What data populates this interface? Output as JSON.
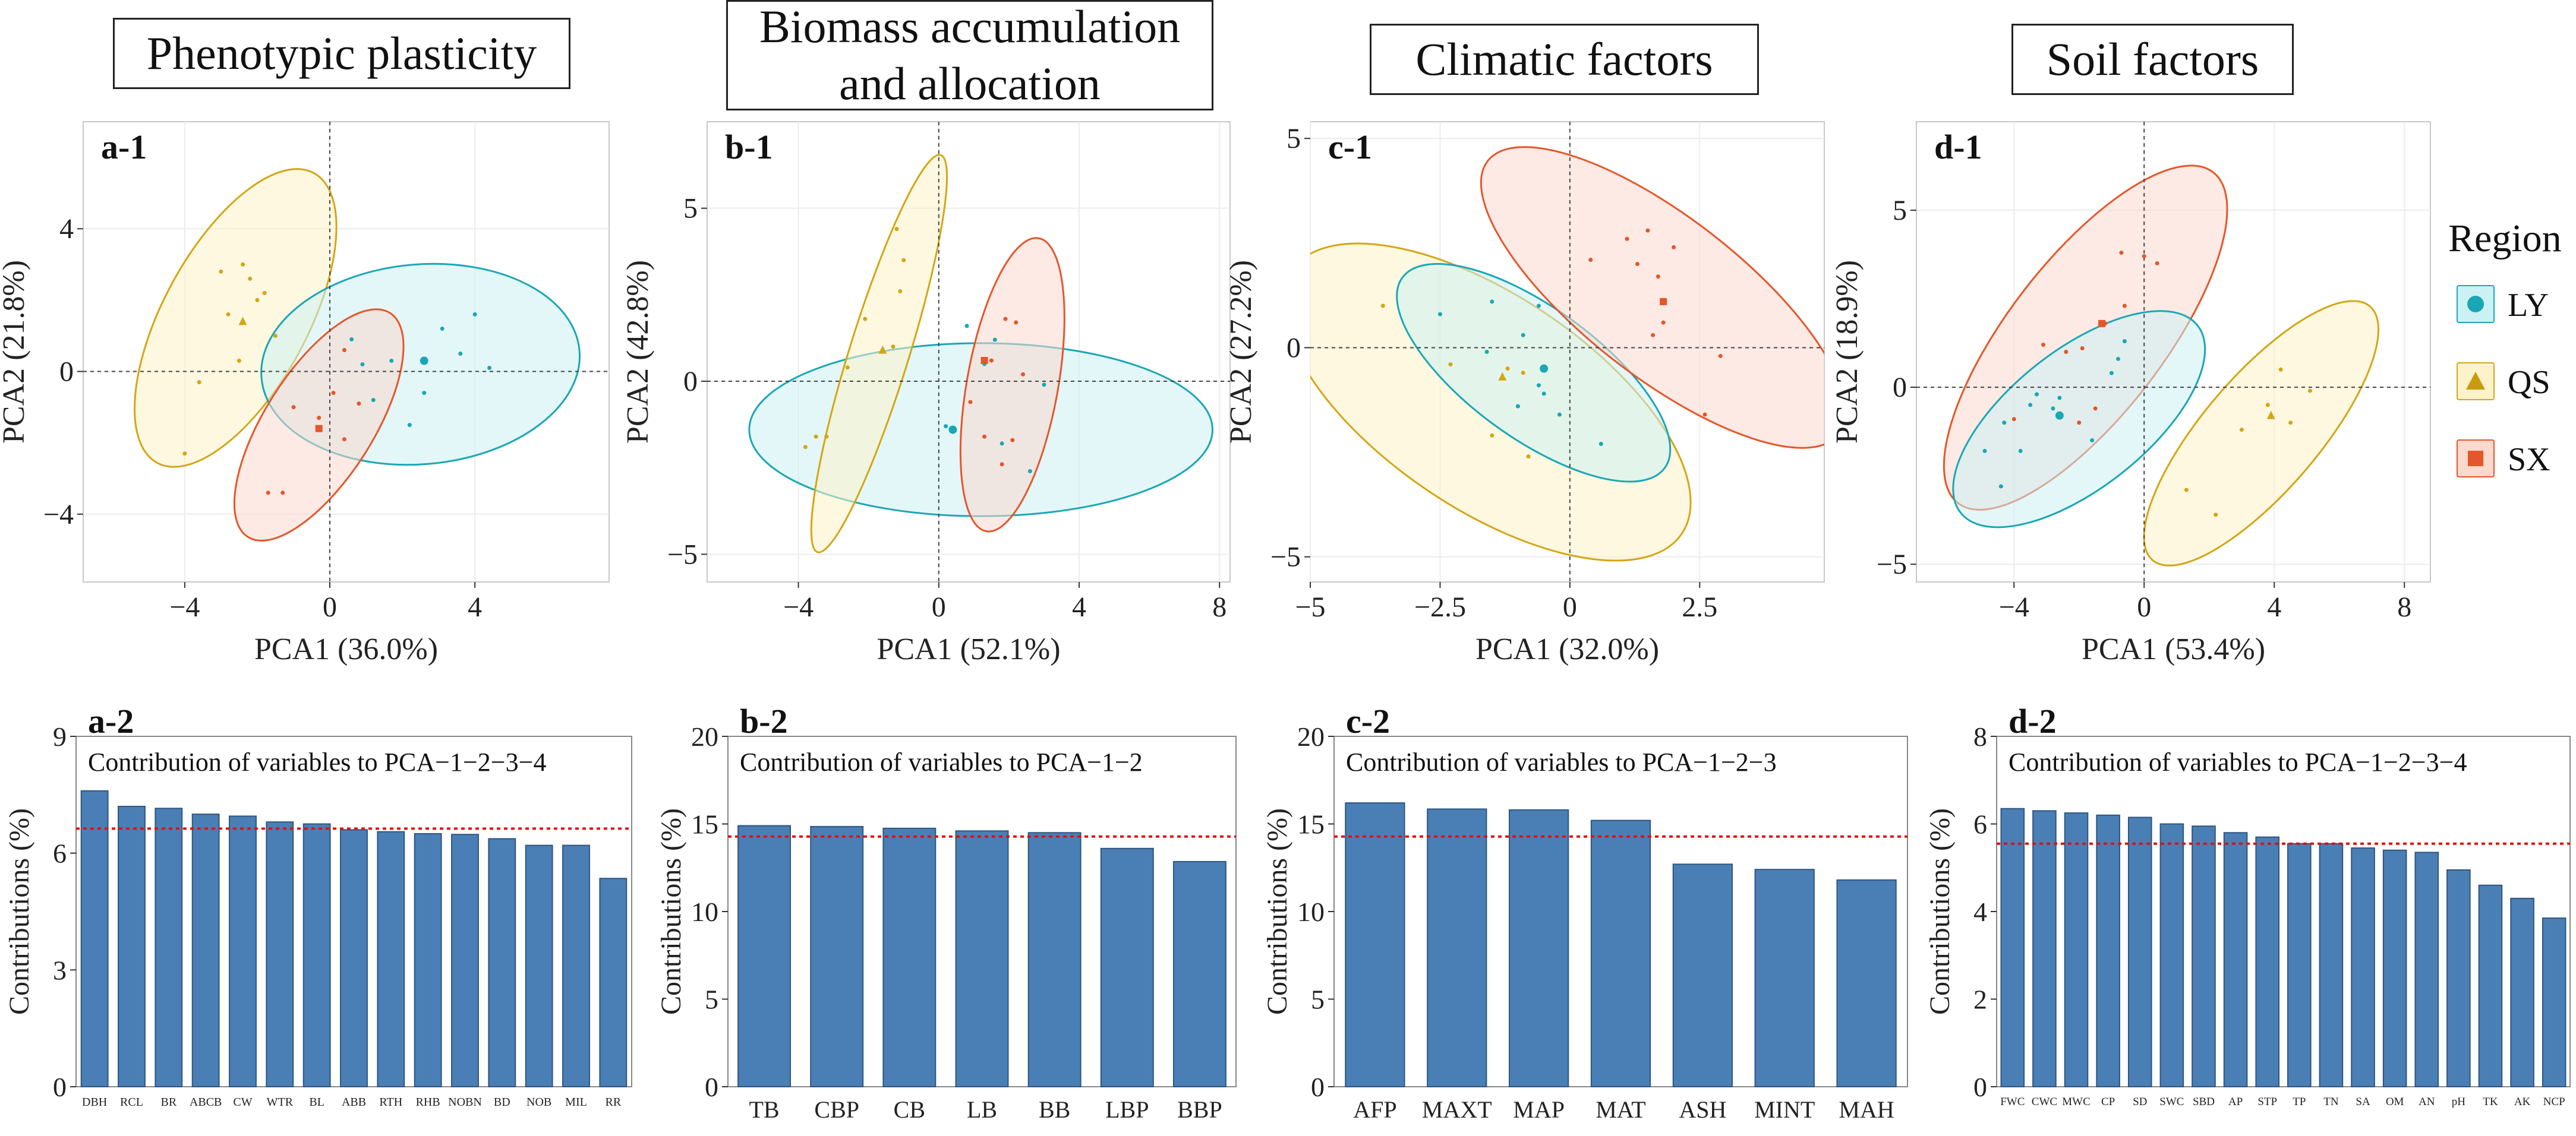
{
  "headers": [
    "Phenotypic plasticity",
    "Biomass accumulation and allocation",
    "Climatic factors",
    "Soil factors"
  ],
  "legend": {
    "title": "Region",
    "items": [
      {
        "name": "LY",
        "color": "#1aa7b5",
        "fill": "#ccf1f4",
        "marker": "circle"
      },
      {
        "name": "QS",
        "color": "#d4a614",
        "fill": "#fdf2c9",
        "marker": "triangle"
      },
      {
        "name": "SX",
        "color": "#e5562a",
        "fill": "#fbd9cd",
        "marker": "square"
      }
    ]
  },
  "chart_data": [
    {
      "panel": "a-1",
      "type": "scatter",
      "xlabel": "PCA1 (36.0%)",
      "ylabel": "PCA2 (21.8%)",
      "xlim": [
        -6.8,
        7.7
      ],
      "ylim": [
        -5.9,
        7.0
      ],
      "xticks": [
        -4,
        0,
        4
      ],
      "yticks": [
        -4,
        0,
        4
      ],
      "ellipses": [
        {
          "group": "QS",
          "cx": -2.6,
          "cy": 1.5,
          "rx": 4.6,
          "ry": 2.0,
          "angle": 62
        },
        {
          "group": "LY",
          "cx": 2.5,
          "cy": 0.2,
          "rx": 4.4,
          "ry": 2.8,
          "angle": 5
        },
        {
          "group": "SX",
          "cx": -0.3,
          "cy": -1.5,
          "rx": 3.7,
          "ry": 1.5,
          "angle": 58
        }
      ],
      "points": [
        {
          "group": "QS",
          "x": -3.0,
          "y": 2.8
        },
        {
          "group": "QS",
          "x": -2.4,
          "y": 3.0
        },
        {
          "group": "QS",
          "x": -1.8,
          "y": 2.2
        },
        {
          "group": "QS",
          "x": -2.2,
          "y": 2.6
        },
        {
          "group": "QS",
          "x": -3.6,
          "y": -0.3
        },
        {
          "group": "QS",
          "x": -4.0,
          "y": -2.3
        },
        {
          "group": "QS",
          "x": -2.8,
          "y": 1.6
        },
        {
          "group": "QS",
          "x": -1.5,
          "y": 1.0
        },
        {
          "group": "QS",
          "x": -2.5,
          "y": 0.3
        },
        {
          "group": "QS",
          "x": -2.0,
          "y": 2.0
        },
        {
          "group": "LY",
          "x": 0.6,
          "y": 0.9
        },
        {
          "group": "LY",
          "x": 0.9,
          "y": 0.2
        },
        {
          "group": "LY",
          "x": 1.7,
          "y": 0.3
        },
        {
          "group": "LY",
          "x": 3.1,
          "y": 1.2
        },
        {
          "group": "LY",
          "x": 3.6,
          "y": 0.5
        },
        {
          "group": "LY",
          "x": 4.0,
          "y": 1.6
        },
        {
          "group": "LY",
          "x": 4.4,
          "y": 0.1
        },
        {
          "group": "LY",
          "x": 2.6,
          "y": -0.6
        },
        {
          "group": "LY",
          "x": 1.2,
          "y": -0.8
        },
        {
          "group": "LY",
          "x": 2.2,
          "y": -1.5
        },
        {
          "group": "SX",
          "x": 0.4,
          "y": 0.6
        },
        {
          "group": "SX",
          "x": 0.1,
          "y": -0.6
        },
        {
          "group": "SX",
          "x": -0.3,
          "y": -1.3
        },
        {
          "group": "SX",
          "x": -1.0,
          "y": -1.0
        },
        {
          "group": "SX",
          "x": -1.3,
          "y": -3.4
        },
        {
          "group": "SX",
          "x": -1.7,
          "y": -3.4
        },
        {
          "group": "SX",
          "x": 0.8,
          "y": -0.9
        },
        {
          "group": "SX",
          "x": 0.4,
          "y": -1.9
        }
      ],
      "centroids": [
        {
          "group": "QS",
          "x": -2.4,
          "y": 1.4
        },
        {
          "group": "LY",
          "x": 2.6,
          "y": 0.3
        },
        {
          "group": "SX",
          "x": -0.3,
          "y": -1.6
        }
      ]
    },
    {
      "panel": "b-1",
      "type": "scatter",
      "xlabel": "PCA1 (52.1%)",
      "ylabel": "PCA2 (42.8%)",
      "xlim": [
        -6.6,
        8.3
      ],
      "ylim": [
        -5.8,
        7.5
      ],
      "xticks": [
        -4,
        0,
        4,
        8
      ],
      "yticks": [
        -5,
        0,
        5
      ],
      "ellipses": [
        {
          "group": "LY",
          "cx": 1.2,
          "cy": -1.4,
          "rx": 6.6,
          "ry": 2.5,
          "angle": 0
        },
        {
          "group": "QS",
          "cx": -1.7,
          "cy": 0.8,
          "rx": 6.0,
          "ry": 0.85,
          "angle": 73
        },
        {
          "group": "SX",
          "cx": 2.1,
          "cy": -0.1,
          "rx": 4.3,
          "ry": 1.3,
          "angle": 80
        }
      ],
      "points": [
        {
          "group": "QS",
          "x": -1.2,
          "y": 4.4
        },
        {
          "group": "QS",
          "x": -1.0,
          "y": 3.5
        },
        {
          "group": "QS",
          "x": -1.1,
          "y": 2.6
        },
        {
          "group": "QS",
          "x": -2.1,
          "y": 1.8
        },
        {
          "group": "QS",
          "x": -2.6,
          "y": 0.4
        },
        {
          "group": "QS",
          "x": -3.5,
          "y": -1.6
        },
        {
          "group": "QS",
          "x": -3.8,
          "y": -1.9
        },
        {
          "group": "QS",
          "x": -3.2,
          "y": -1.6
        },
        {
          "group": "QS",
          "x": -1.3,
          "y": 1.0
        },
        {
          "group": "LY",
          "x": 0.8,
          "y": 1.6
        },
        {
          "group": "LY",
          "x": 1.6,
          "y": 1.2
        },
        {
          "group": "LY",
          "x": 3.0,
          "y": -0.1
        },
        {
          "group": "LY",
          "x": 2.6,
          "y": -2.6
        },
        {
          "group": "LY",
          "x": 0.2,
          "y": -1.3
        },
        {
          "group": "LY",
          "x": 1.8,
          "y": -1.8
        },
        {
          "group": "LY",
          "x": 1.3,
          "y": 0.5
        },
        {
          "group": "SX",
          "x": 1.9,
          "y": 1.8
        },
        {
          "group": "SX",
          "x": 2.2,
          "y": 1.7
        },
        {
          "group": "SX",
          "x": 1.5,
          "y": 0.6
        },
        {
          "group": "SX",
          "x": 2.4,
          "y": 0.2
        },
        {
          "group": "SX",
          "x": 0.9,
          "y": -0.6
        },
        {
          "group": "SX",
          "x": 1.3,
          "y": -1.6
        },
        {
          "group": "SX",
          "x": 2.1,
          "y": -1.7
        },
        {
          "group": "SX",
          "x": 1.8,
          "y": -2.4
        }
      ],
      "centroids": [
        {
          "group": "QS",
          "x": -1.6,
          "y": 0.9
        },
        {
          "group": "LY",
          "x": 0.4,
          "y": -1.4
        },
        {
          "group": "SX",
          "x": 1.3,
          "y": 0.6
        }
      ]
    },
    {
      "panel": "c-1",
      "type": "scatter",
      "xlabel": "PCA1 (32.0%)",
      "ylabel": "PCA2 (27.2%)",
      "xlim": [
        -5.0,
        4.9
      ],
      "ylim": [
        -5.6,
        5.4
      ],
      "xticks": [
        -5,
        -2.5,
        0,
        2.5
      ],
      "yticks": [
        -5,
        0,
        5
      ],
      "xticklabels": [
        "−5",
        "−2.5",
        "0",
        "2.5"
      ],
      "ellipses": [
        {
          "group": "QS",
          "cx": -1.6,
          "cy": -1.3,
          "rx": 4.9,
          "ry": 2.3,
          "angle": -40
        },
        {
          "group": "LY",
          "cx": -0.7,
          "cy": -0.6,
          "rx": 3.4,
          "ry": 1.4,
          "angle": -42
        },
        {
          "group": "SX",
          "cx": 1.8,
          "cy": 1.2,
          "rx": 4.7,
          "ry": 1.7,
          "angle": -44
        }
      ],
      "points": [
        {
          "group": "LY",
          "x": -1.5,
          "y": 1.1
        },
        {
          "group": "LY",
          "x": -0.6,
          "y": 1.0
        },
        {
          "group": "LY",
          "x": -2.5,
          "y": 0.8
        },
        {
          "group": "LY",
          "x": -0.9,
          "y": 0.3
        },
        {
          "group": "LY",
          "x": -1.6,
          "y": -0.1
        },
        {
          "group": "LY",
          "x": -0.2,
          "y": -1.6
        },
        {
          "group": "LY",
          "x": 0.6,
          "y": -2.3
        },
        {
          "group": "LY",
          "x": -0.5,
          "y": -1.1
        },
        {
          "group": "LY",
          "x": -1.0,
          "y": -1.4
        },
        {
          "group": "LY",
          "x": -0.6,
          "y": -0.9
        },
        {
          "group": "QS",
          "x": -3.6,
          "y": 1.0
        },
        {
          "group": "QS",
          "x": -2.3,
          "y": -0.4
        },
        {
          "group": "QS",
          "x": -1.2,
          "y": -0.5
        },
        {
          "group": "QS",
          "x": -0.8,
          "y": -2.6
        },
        {
          "group": "QS",
          "x": -1.5,
          "y": -2.1
        },
        {
          "group": "QS",
          "x": -0.9,
          "y": -0.6
        },
        {
          "group": "SX",
          "x": 1.1,
          "y": 2.6
        },
        {
          "group": "SX",
          "x": 1.5,
          "y": 2.8
        },
        {
          "group": "SX",
          "x": 2.0,
          "y": 2.4
        },
        {
          "group": "SX",
          "x": 0.4,
          "y": 2.1
        },
        {
          "group": "SX",
          "x": 1.3,
          "y": 2.0
        },
        {
          "group": "SX",
          "x": 1.7,
          "y": 1.7
        },
        {
          "group": "SX",
          "x": 1.8,
          "y": 0.6
        },
        {
          "group": "SX",
          "x": 1.6,
          "y": 0.3
        },
        {
          "group": "SX",
          "x": 2.9,
          "y": -0.2
        },
        {
          "group": "SX",
          "x": 2.6,
          "y": -1.6
        }
      ],
      "centroids": [
        {
          "group": "LY",
          "x": -0.5,
          "y": -0.5
        },
        {
          "group": "QS",
          "x": -1.3,
          "y": -0.7
        },
        {
          "group": "SX",
          "x": 1.8,
          "y": 1.1
        }
      ]
    },
    {
      "panel": "d-1",
      "type": "scatter",
      "xlabel": "PCA1 (53.4%)",
      "ylabel": "PCA2 (18.9%)",
      "xlim": [
        -7.0,
        8.8
      ],
      "ylim": [
        -5.5,
        7.5
      ],
      "xticks": [
        -4,
        0,
        4,
        8
      ],
      "yticks": [
        -5,
        0,
        5
      ],
      "ellipses": [
        {
          "group": "SX",
          "cx": -1.8,
          "cy": 1.4,
          "rx": 6.1,
          "ry": 2.3,
          "angle": 50
        },
        {
          "group": "LY",
          "cx": -2.0,
          "cy": -0.9,
          "rx": 4.5,
          "ry": 2.0,
          "angle": 36
        },
        {
          "group": "QS",
          "cx": 3.6,
          "cy": -1.3,
          "rx": 4.9,
          "ry": 1.7,
          "angle": 47
        }
      ],
      "points": [
        {
          "group": "SX",
          "x": -0.7,
          "y": 3.8
        },
        {
          "group": "SX",
          "x": 0.0,
          "y": 3.7
        },
        {
          "group": "SX",
          "x": 0.4,
          "y": 3.5
        },
        {
          "group": "SX",
          "x": -0.6,
          "y": 2.3
        },
        {
          "group": "SX",
          "x": -1.2,
          "y": 1.8
        },
        {
          "group": "SX",
          "x": -3.1,
          "y": 1.2
        },
        {
          "group": "SX",
          "x": -2.4,
          "y": 1.0
        },
        {
          "group": "SX",
          "x": -1.9,
          "y": 1.1
        },
        {
          "group": "SX",
          "x": -4.0,
          "y": -0.9
        },
        {
          "group": "SX",
          "x": -1.5,
          "y": -0.6
        },
        {
          "group": "SX",
          "x": -2.0,
          "y": -1.0
        },
        {
          "group": "LY",
          "x": -0.6,
          "y": 1.3
        },
        {
          "group": "LY",
          "x": -0.8,
          "y": 0.8
        },
        {
          "group": "LY",
          "x": -1.0,
          "y": 0.4
        },
        {
          "group": "LY",
          "x": -2.8,
          "y": -0.6
        },
        {
          "group": "LY",
          "x": -3.3,
          "y": -0.2
        },
        {
          "group": "LY",
          "x": -3.5,
          "y": -0.5
        },
        {
          "group": "LY",
          "x": -2.6,
          "y": -0.3
        },
        {
          "group": "LY",
          "x": -4.9,
          "y": -1.8
        },
        {
          "group": "LY",
          "x": -3.8,
          "y": -1.8
        },
        {
          "group": "LY",
          "x": -4.3,
          "y": -1.0
        },
        {
          "group": "LY",
          "x": -1.6,
          "y": -1.5
        },
        {
          "group": "LY",
          "x": -4.4,
          "y": -2.8
        },
        {
          "group": "QS",
          "x": 4.2,
          "y": 0.5
        },
        {
          "group": "QS",
          "x": 3.8,
          "y": -0.5
        },
        {
          "group": "QS",
          "x": 4.5,
          "y": -1.0
        },
        {
          "group": "QS",
          "x": 3.0,
          "y": -1.2
        },
        {
          "group": "QS",
          "x": 1.3,
          "y": -2.9
        },
        {
          "group": "QS",
          "x": 2.2,
          "y": -3.6
        },
        {
          "group": "QS",
          "x": 5.1,
          "y": -0.1
        }
      ],
      "centroids": [
        {
          "group": "SX",
          "x": -1.3,
          "y": 1.8
        },
        {
          "group": "LY",
          "x": -2.6,
          "y": -0.8
        },
        {
          "group": "QS",
          "x": 3.9,
          "y": -0.8
        }
      ]
    },
    {
      "panel": "a-2",
      "type": "bar",
      "subtitle": "Contribution of variables to PCA−1−2−3−4",
      "ylabel": "Contributions (%)",
      "ylim": [
        0,
        9
      ],
      "yticks": [
        0,
        3,
        6,
        9
      ],
      "reference_line": 6.63,
      "categories": [
        "DBH",
        "RCL",
        "BR",
        "ABCB",
        "CW",
        "WTR",
        "BL",
        "ABB",
        "RTH",
        "RHB",
        "NOBN",
        "BD",
        "NOB",
        "MIL",
        "RR"
      ],
      "values": [
        7.6,
        7.2,
        7.15,
        7.0,
        6.95,
        6.8,
        6.75,
        6.6,
        6.55,
        6.5,
        6.48,
        6.37,
        6.2,
        6.2,
        5.35
      ]
    },
    {
      "panel": "b-2",
      "type": "bar",
      "subtitle": "Contribution of variables to PCA−1−2",
      "ylabel": "Contributions (%)",
      "ylim": [
        0,
        20
      ],
      "yticks": [
        0,
        5,
        10,
        15,
        20
      ],
      "reference_line": 14.28,
      "categories": [
        "TB",
        "CBP",
        "CB",
        "LB",
        "BB",
        "LBP",
        "BBP"
      ],
      "values": [
        14.9,
        14.85,
        14.75,
        14.6,
        14.5,
        13.6,
        12.85
      ]
    },
    {
      "panel": "c-2",
      "type": "bar",
      "subtitle": "Contribution of variables to PCA−1−2−3",
      "ylabel": "Contributions (%)",
      "ylim": [
        0,
        20
      ],
      "yticks": [
        0,
        5,
        10,
        15,
        20
      ],
      "reference_line": 14.28,
      "categories": [
        "AFP",
        "MAXT",
        "MAP",
        "MAT",
        "ASH",
        "MINT",
        "MAH"
      ],
      "values": [
        16.2,
        15.85,
        15.8,
        15.2,
        12.7,
        12.4,
        11.8
      ]
    },
    {
      "panel": "d-2",
      "type": "bar",
      "subtitle": "Contribution of variables to PCA−1−2−3−4",
      "ylabel": "Contributions (%)",
      "ylim": [
        0,
        8
      ],
      "yticks": [
        0,
        2,
        4,
        6,
        8
      ],
      "reference_line": 5.55,
      "categories": [
        "FWC",
        "CWC",
        "MWC",
        "CP",
        "SD",
        "SWC",
        "SBD",
        "AP",
        "STP",
        "TP",
        "TN",
        "SA",
        "OM",
        "AN",
        "pH",
        "TK",
        "AK",
        "NCP"
      ],
      "values": [
        6.35,
        6.3,
        6.25,
        6.2,
        6.15,
        6.0,
        5.95,
        5.8,
        5.7,
        5.55,
        5.55,
        5.45,
        5.4,
        5.35,
        4.95,
        4.6,
        4.3,
        3.85
      ]
    }
  ]
}
